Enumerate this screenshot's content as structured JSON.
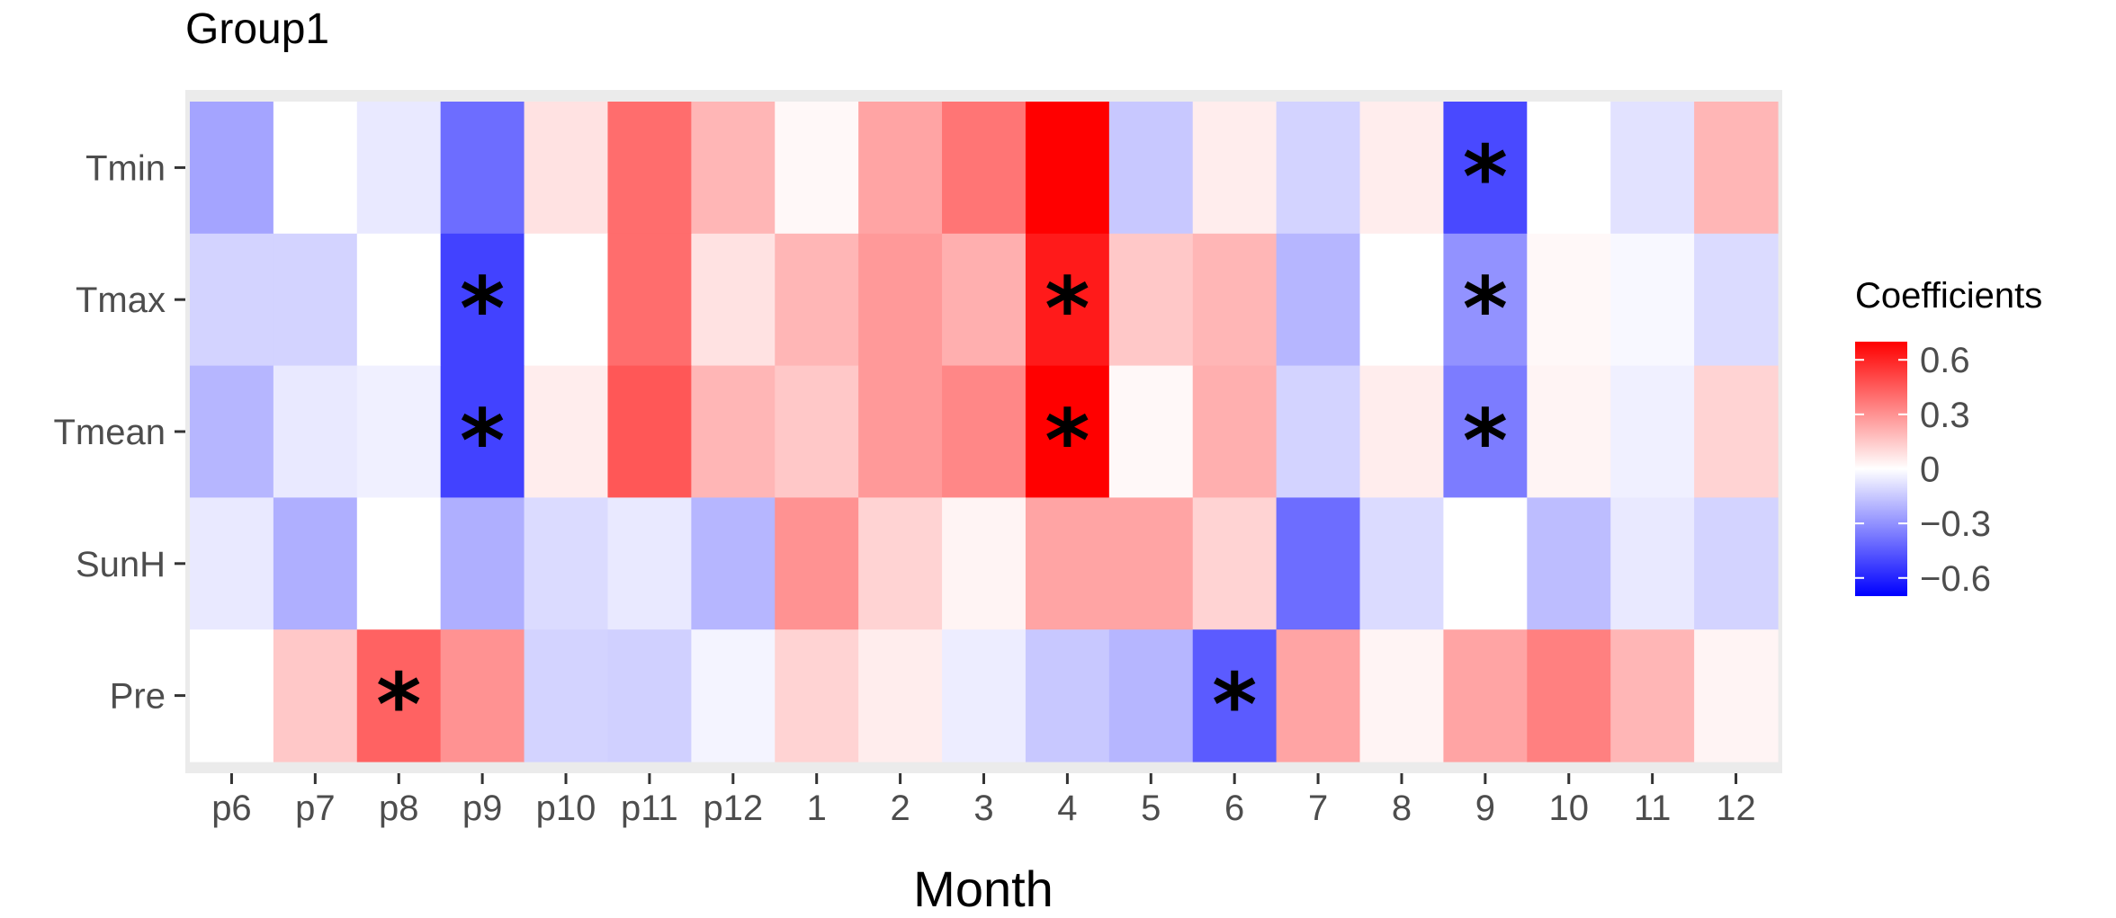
{
  "chart_data": {
    "type": "heatmap",
    "title": "Group1",
    "xlabel": "Month",
    "ylabel": "",
    "x": [
      "p6",
      "p7",
      "p8",
      "p9",
      "p10",
      "p11",
      "p12",
      "1",
      "2",
      "3",
      "4",
      "5",
      "6",
      "7",
      "8",
      "9",
      "10",
      "11",
      "12"
    ],
    "y": [
      "Tmin",
      "Tmax",
      "Tmean",
      "SunH",
      "Pre"
    ],
    "values": [
      [
        -0.25,
        0.0,
        -0.06,
        -0.4,
        0.08,
        0.4,
        0.2,
        0.02,
        0.25,
        0.38,
        0.7,
        -0.15,
        0.05,
        -0.12,
        0.05,
        -0.5,
        0.0,
        -0.08,
        0.2
      ],
      [
        -0.12,
        -0.12,
        0.0,
        -0.52,
        0.0,
        0.4,
        0.08,
        0.2,
        0.28,
        0.22,
        0.63,
        0.15,
        0.2,
        -0.2,
        0.0,
        -0.3,
        0.02,
        -0.02,
        -0.1
      ],
      [
        -0.2,
        -0.06,
        -0.04,
        -0.52,
        0.05,
        0.46,
        0.2,
        0.15,
        0.28,
        0.33,
        0.7,
        0.02,
        0.22,
        -0.12,
        0.05,
        -0.36,
        0.03,
        -0.04,
        0.12
      ],
      [
        -0.06,
        -0.22,
        0.0,
        -0.22,
        -0.1,
        -0.06,
        -0.2,
        0.3,
        0.12,
        0.03,
        0.25,
        0.25,
        0.12,
        -0.4,
        -0.1,
        0.0,
        -0.18,
        -0.06,
        -0.12
      ],
      [
        0.0,
        0.15,
        0.43,
        0.3,
        -0.12,
        -0.13,
        -0.03,
        0.12,
        0.05,
        -0.05,
        -0.15,
        -0.2,
        -0.45,
        0.25,
        0.03,
        0.25,
        0.35,
        0.2,
        0.03
      ]
    ],
    "significant": [
      [
        15
      ],
      [
        3,
        10,
        15
      ],
      [
        3,
        10,
        15
      ],
      [],
      [
        2,
        12
      ]
    ],
    "significance_marker": "*",
    "legend": {
      "title": "Coefficients",
      "placement": "right",
      "ticks": [
        0.6,
        0.3,
        0,
        -0.3,
        -0.6
      ],
      "tick_labels": [
        "0.6",
        "0.3",
        "0",
        "−0.3",
        "−0.6"
      ],
      "range": [
        -0.7,
        0.7
      ],
      "colors": {
        "low": "#0000ff",
        "mid": "#ffffff",
        "high": "#ff0000"
      }
    },
    "panel_background": "#ebebeb"
  }
}
